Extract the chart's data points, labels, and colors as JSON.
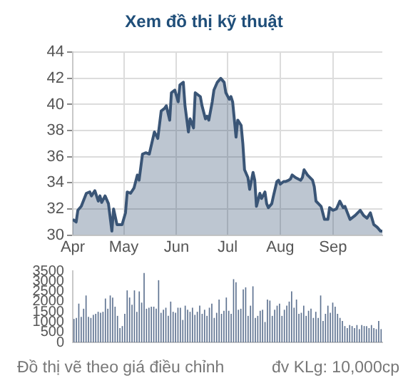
{
  "chart_data": [
    {
      "type": "area",
      "title": "Xem đồ thị kỹ thuật",
      "color": "#3a5576",
      "x": [
        "--04-01",
        "--04-03",
        "--04-04",
        "--04-06",
        "--04-09",
        "--04-11",
        "--04-12",
        "--04-14",
        "--04-16",
        "--04-17",
        "--04-18",
        "--04-20",
        "--04-22",
        "--04-24",
        "--04-25",
        "--04-27",
        "--04-30",
        "--05-02",
        "--05-03",
        "--05-05",
        "--05-07",
        "--05-09",
        "--05-10",
        "--05-12",
        "--05-14",
        "--05-16",
        "--05-19",
        "--05-21",
        "--05-23",
        "--05-25",
        "--05-26",
        "--05-28",
        "--05-29",
        "--05-31",
        "--06-02",
        "--06-03",
        "--06-05",
        "--06-06",
        "--06-08",
        "--06-09",
        "--06-11",
        "--06-12",
        "--06-15",
        "--06-16",
        "--06-18",
        "--06-19",
        "--06-20",
        "--06-22",
        "--06-23",
        "--06-25",
        "--06-27",
        "--06-29",
        "--06-30",
        "--07-02",
        "--07-03",
        "--07-04",
        "--07-06",
        "--07-07",
        "--07-09",
        "--07-10",
        "--07-11",
        "--07-13",
        "--07-14",
        "--07-16",
        "--07-17",
        "--07-18",
        "--07-20",
        "--07-21",
        "--07-23",
        "--07-24",
        "--07-25",
        "--07-27",
        "--07-28",
        "--07-30",
        "--07-31",
        "--08-01",
        "--08-03",
        "--08-04",
        "--08-06",
        "--08-07",
        "--08-08",
        "--08-10",
        "--08-13",
        "--08-14",
        "--08-15",
        "--08-17",
        "--08-20",
        "--08-21",
        "--08-22",
        "--08-25",
        "--08-27",
        "--08-29",
        "--08-30",
        "--09-01",
        "--09-03",
        "--09-05",
        "--09-07",
        "--09-08",
        "--09-11",
        "--09-14",
        "--09-17",
        "--09-19",
        "--09-21",
        "--09-23",
        "--09-25",
        "--09-27",
        "--09-29",
        "--09-30"
      ],
      "values": [
        31.2,
        31.0,
        31.9,
        32.2,
        33.2,
        33.3,
        33.0,
        33.4,
        32.6,
        33.0,
        32.5,
        33.0,
        32.4,
        30.3,
        32.0,
        30.8,
        30.8,
        31.7,
        33.3,
        33.2,
        33.6,
        34.6,
        34.2,
        36.2,
        36.3,
        36.2,
        37.9,
        37.4,
        39.5,
        39.7,
        39.9,
        38.8,
        40.9,
        41.1,
        40.2,
        41.5,
        41.7,
        39.9,
        37.9,
        38.9,
        38.2,
        40.9,
        40.6,
        39.9,
        38.9,
        39.1,
        38.8,
        40.2,
        41.1,
        41.7,
        42.0,
        41.7,
        40.9,
        40.4,
        40.6,
        40.2,
        37.5,
        38.8,
        38.4,
        37.0,
        35.0,
        34.4,
        33.5,
        34.8,
        34.2,
        32.2,
        33.2,
        32.8,
        33.3,
        32.4,
        32.1,
        32.4,
        33.0,
        34.1,
        34.2,
        33.9,
        34.1,
        34.1,
        34.2,
        34.3,
        34.6,
        34.4,
        34.2,
        34.4,
        35.0,
        34.6,
        34.2,
        33.7,
        32.6,
        32.2,
        31.2,
        31.2,
        32.1,
        31.9,
        32.0,
        32.6,
        32.1,
        32.2,
        31.2,
        31.5,
        31.9,
        31.5,
        31.3,
        31.7,
        30.8,
        30.6,
        30.3,
        30.3
      ],
      "xlim": [
        "--04-01",
        "--09-30"
      ],
      "xticks": [
        {
          "value": "--04-01",
          "label": "Apr"
        },
        {
          "value": "--05-01",
          "label": "May"
        },
        {
          "value": "--06-01",
          "label": "Jun"
        },
        {
          "value": "--07-01",
          "label": "Jul"
        },
        {
          "value": "--08-01",
          "label": "Aug"
        },
        {
          "value": "--09-01",
          "label": "Sep"
        }
      ],
      "ylim": [
        30,
        44
      ],
      "yticks": [
        30,
        32,
        34,
        36,
        38,
        40,
        42,
        44
      ],
      "grid": true
    },
    {
      "type": "bar",
      "color": "#5f7391",
      "tick_labels": "y",
      "categories": [
        null,
        null,
        null,
        null,
        null,
        null,
        null,
        null,
        null,
        null,
        null,
        null,
        null,
        null,
        null,
        null,
        null,
        null,
        null,
        null,
        null,
        null,
        null,
        null,
        null,
        null,
        null,
        null,
        null,
        null,
        null,
        null,
        null,
        null,
        null,
        null,
        null,
        null,
        null,
        null,
        null,
        null,
        null,
        null,
        null,
        null,
        null,
        null,
        null,
        null,
        null,
        null,
        null,
        null,
        null,
        null,
        null,
        null,
        null,
        null,
        null,
        null,
        null,
        null,
        null,
        null,
        null,
        null,
        null,
        null,
        null,
        null,
        null,
        null,
        null,
        null,
        null,
        null,
        null,
        null,
        null,
        null,
        null,
        null,
        null,
        null,
        null,
        null,
        null,
        null,
        null,
        null,
        null,
        null,
        null,
        null,
        null,
        null,
        null,
        null,
        null,
        null,
        null,
        null,
        null,
        null,
        null,
        null,
        null,
        null,
        null,
        null,
        null,
        null,
        null,
        null,
        null,
        null,
        null,
        null,
        null,
        null,
        null,
        null,
        null,
        null,
        null,
        null
      ],
      "values": [
        1150,
        1200,
        1900,
        1250,
        1650,
        2300,
        1250,
        1200,
        1350,
        1400,
        1500,
        1450,
        1500,
        2150,
        1650,
        2300,
        2200,
        1750,
        1300,
        700,
        800,
        1400,
        2550,
        2200,
        1850,
        2550,
        1500,
        2500,
        1950,
        3400,
        1650,
        1700,
        1750,
        1750,
        1650,
        3050,
        1450,
        1600,
        1700,
        1300,
        2000,
        1500,
        1450,
        1700,
        1700,
        1100,
        1800,
        1600,
        1500,
        1700,
        1350,
        1500,
        1800,
        1400,
        1600,
        1300,
        1700,
        1900,
        1200,
        1450,
        2100,
        1400,
        1550,
        2200,
        1550,
        1400,
        3100,
        2950,
        1600,
        1650,
        2600,
        2700,
        1300,
        1800,
        2750,
        1200,
        1300,
        1550,
        1600,
        1000,
        2100,
        2050,
        1300,
        1600,
        1800,
        1900,
        1300,
        1600,
        1800,
        2000,
        2500,
        1700,
        2100,
        1400,
        1450,
        1800,
        1300,
        1550,
        1650,
        1200,
        1500,
        1200,
        2300,
        1050,
        1400,
        1800,
        1450,
        1950,
        1750,
        1400,
        1200,
        1050,
        800,
        700,
        850,
        800,
        700,
        850,
        650,
        850,
        800,
        800,
        700,
        850,
        700,
        650,
        1050,
        650
      ],
      "ylim": [
        0,
        3500
      ],
      "yticks": [
        0,
        500,
        1000,
        1500,
        2000,
        2500,
        3000,
        3500
      ],
      "annotations": [
        "Đồ thị vẽ theo giá điều chỉnh",
        "đv KLg: 10,000cp"
      ]
    }
  ]
}
